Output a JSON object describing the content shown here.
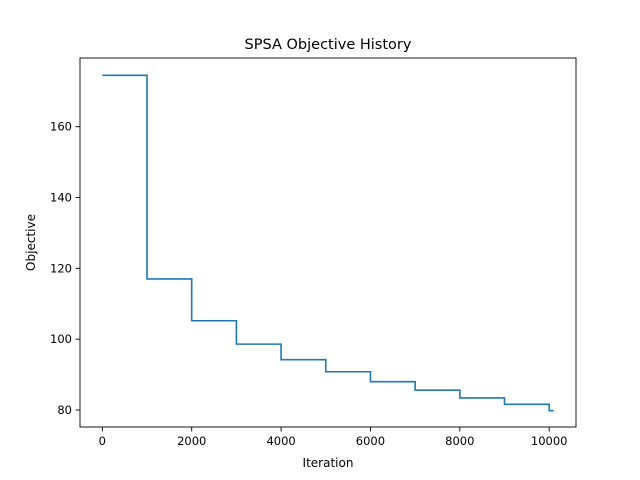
{
  "chart_data": {
    "type": "line",
    "title": "SPSA Objective History",
    "xlabel": "Iteration",
    "ylabel": "Objective",
    "xlim": [
      -500,
      10600
    ],
    "ylim": [
      75.2,
      179.4
    ],
    "xticks": [
      0,
      2000,
      4000,
      6000,
      8000,
      10000
    ],
    "yticks": [
      80,
      100,
      120,
      140,
      160
    ],
    "xtick_labels": [
      "0",
      "2000",
      "4000",
      "6000",
      "8000",
      "10000"
    ],
    "ytick_labels": [
      "80",
      "100",
      "120",
      "140",
      "160"
    ],
    "grid": false,
    "legend": "none",
    "series": [
      {
        "color": "#1f77b4",
        "drawstyle": "steps-post",
        "x": [
          0,
          1000,
          2000,
          3000,
          4000,
          5000,
          6000,
          7000,
          8000,
          9000,
          10000,
          10100
        ],
        "y": [
          174.5,
          117.0,
          105.2,
          98.6,
          94.2,
          90.8,
          88.0,
          85.6,
          83.4,
          81.6,
          79.8,
          79.8
        ]
      }
    ]
  }
}
